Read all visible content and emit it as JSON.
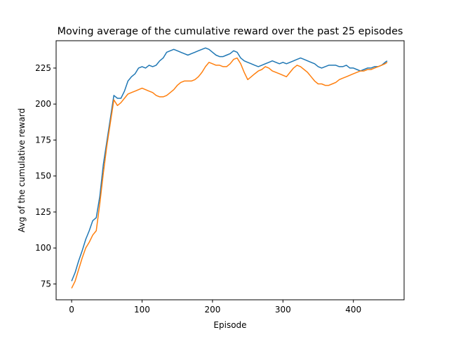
{
  "chart_data": {
    "type": "line",
    "title": "Moving average of the cumulative reward over the past 25 episodes",
    "xlabel": "Episode",
    "ylabel": "Avg of the cumulative reward",
    "xlim": [
      -22,
      472
    ],
    "ylim": [
      64,
      244
    ],
    "xticks": [
      0,
      100,
      200,
      300,
      400
    ],
    "yticks": [
      75,
      100,
      125,
      150,
      175,
      200,
      225
    ],
    "grid": false,
    "legend": "none",
    "series": [
      {
        "color": "#1f77b4",
        "x": [
          0,
          5,
          10,
          15,
          20,
          25,
          30,
          35,
          40,
          45,
          50,
          55,
          60,
          65,
          70,
          75,
          80,
          85,
          90,
          95,
          100,
          105,
          110,
          115,
          120,
          125,
          130,
          135,
          140,
          145,
          150,
          155,
          160,
          165,
          170,
          175,
          180,
          185,
          190,
          195,
          200,
          205,
          210,
          215,
          220,
          225,
          230,
          235,
          240,
          245,
          250,
          255,
          260,
          265,
          270,
          275,
          280,
          285,
          290,
          295,
          300,
          305,
          310,
          315,
          320,
          325,
          330,
          335,
          340,
          345,
          350,
          355,
          360,
          365,
          370,
          375,
          380,
          385,
          390,
          395,
          400,
          405,
          410,
          415,
          420,
          425,
          430,
          435,
          440,
          445,
          448
        ],
        "y": [
          77,
          83,
          91,
          98,
          106,
          112,
          119,
          121,
          136,
          158,
          174,
          190,
          206,
          204,
          204,
          209,
          216,
          219,
          221,
          225,
          226,
          225,
          227,
          226,
          227,
          230,
          232,
          236,
          237,
          238,
          237,
          236,
          235,
          234,
          235,
          236,
          237,
          238,
          239,
          238,
          236,
          234,
          233,
          233,
          234,
          235,
          237,
          236,
          232,
          230,
          229,
          228,
          227,
          226,
          227,
          228,
          229,
          230,
          229,
          228,
          229,
          228,
          229,
          230,
          231,
          232,
          231,
          230,
          229,
          228,
          226,
          225,
          226,
          227,
          227,
          227,
          226,
          226,
          227,
          225,
          225,
          224,
          223,
          224,
          225,
          225,
          226,
          226,
          227,
          229,
          230
        ]
      },
      {
        "color": "#ff7f0e",
        "x": [
          0,
          5,
          10,
          15,
          20,
          25,
          30,
          35,
          40,
          45,
          50,
          55,
          60,
          65,
          70,
          75,
          80,
          85,
          90,
          95,
          100,
          105,
          110,
          115,
          120,
          125,
          130,
          135,
          140,
          145,
          150,
          155,
          160,
          165,
          170,
          175,
          180,
          185,
          190,
          195,
          200,
          205,
          210,
          215,
          220,
          225,
          230,
          235,
          240,
          245,
          250,
          255,
          260,
          265,
          270,
          275,
          280,
          285,
          290,
          295,
          300,
          305,
          310,
          315,
          320,
          325,
          330,
          335,
          340,
          345,
          350,
          355,
          360,
          365,
          370,
          375,
          380,
          385,
          390,
          395,
          400,
          405,
          410,
          415,
          420,
          425,
          430,
          435,
          440,
          445,
          448
        ],
        "y": [
          72,
          77,
          85,
          93,
          100,
          104,
          109,
          112,
          131,
          152,
          171,
          187,
          203,
          199,
          201,
          204,
          207,
          208,
          209,
          210,
          211,
          210,
          209,
          208,
          206,
          205,
          205,
          206,
          208,
          210,
          213,
          215,
          216,
          216,
          216,
          217,
          219,
          222,
          226,
          229,
          228,
          227,
          227,
          226,
          226,
          228,
          231,
          232,
          228,
          222,
          217,
          219,
          221,
          223,
          224,
          226,
          225,
          223,
          222,
          221,
          220,
          219,
          222,
          225,
          227,
          226,
          224,
          222,
          219,
          216,
          214,
          214,
          213,
          213,
          214,
          215,
          217,
          218,
          219,
          220,
          221,
          222,
          223,
          223,
          224,
          224,
          225,
          226,
          227,
          228,
          229
        ]
      }
    ]
  }
}
